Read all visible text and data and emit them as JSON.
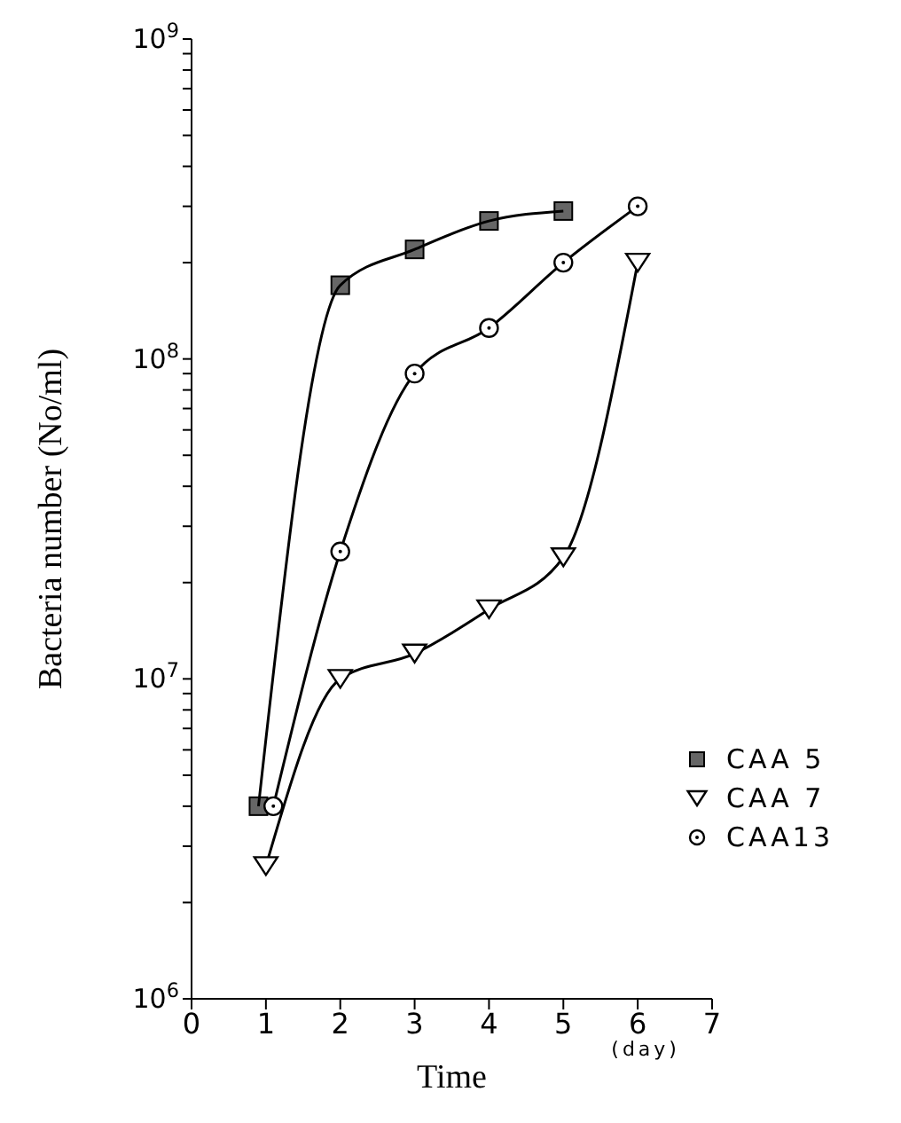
{
  "chart_data": {
    "type": "line",
    "xlabel": "Time",
    "ylabel": "Bacteria number (No/ml)",
    "log": "y",
    "xlim": [
      0,
      7
    ],
    "xticks": [
      0,
      1,
      2,
      3,
      4,
      5,
      6,
      7
    ],
    "ylim": [
      1000000,
      1000000000
    ],
    "yticks": [
      {
        "value": 1000000,
        "label": "10$^{6}$"
      },
      {
        "value": 2000000,
        "label": null
      },
      {
        "value": 3000000,
        "label": null
      },
      {
        "value": 4000000,
        "label": null
      },
      {
        "value": 5000000,
        "label": null
      },
      {
        "value": 6000000,
        "label": null
      },
      {
        "value": 7000000,
        "label": null
      },
      {
        "value": 8000000,
        "label": null
      },
      {
        "value": 9000000,
        "label": null
      },
      {
        "value": 10000000,
        "label": "10$^{7}$"
      },
      {
        "value": 20000000,
        "label": null
      },
      {
        "value": 30000000,
        "label": null
      },
      {
        "value": 40000000,
        "label": null
      },
      {
        "value": 50000000,
        "label": null
      },
      {
        "value": 60000000,
        "label": null
      },
      {
        "value": 70000000,
        "label": null
      },
      {
        "value": 80000000,
        "label": null
      },
      {
        "value": 90000000,
        "label": null
      },
      {
        "value": 100000000,
        "label": "10$^{8}$"
      },
      {
        "value": 200000000,
        "label": null
      },
      {
        "value": 300000000,
        "label": null
      },
      {
        "value": 400000000,
        "label": null
      },
      {
        "value": 500000000,
        "label": null
      },
      {
        "value": 600000000,
        "label": null
      },
      {
        "value": 700000000,
        "label": null
      },
      {
        "value": 800000000,
        "label": null
      },
      {
        "value": 900000000,
        "label": null
      },
      {
        "value": 1000000000,
        "label": "10$^{9}$"
      }
    ],
    "legend": "bottom right",
    "annotations": [
      "(day)"
    ],
    "series": [
      {
        "name": "CAA 5",
        "color": "#000000",
        "marker": "square",
        "x": [
          0.9,
          2,
          3,
          4,
          5
        ],
        "values": [
          4000000,
          170000000,
          220000000,
          270000000,
          290000000
        ]
      },
      {
        "name": "CAA 7",
        "color": "#000000",
        "marker": "triangle",
        "x": [
          1,
          2,
          3,
          4,
          5,
          6
        ],
        "values": [
          2600000,
          10000000,
          12000000,
          16500000,
          24000000,
          200000000
        ]
      },
      {
        "name": "CAA13",
        "color": "#000000",
        "marker": "circle",
        "x": [
          1.1,
          2,
          3,
          4,
          5,
          6
        ],
        "values": [
          4000000,
          25000000,
          90000000,
          125000000,
          200000000,
          300000000
        ]
      }
    ]
  }
}
